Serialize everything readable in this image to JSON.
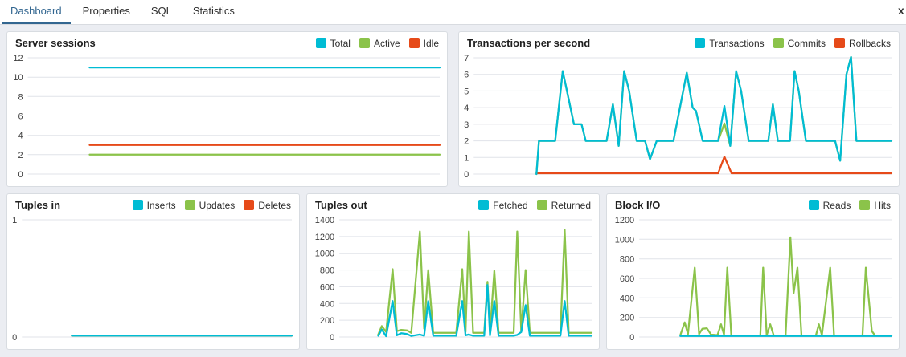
{
  "tabs": {
    "items": [
      {
        "label": "Dashboard",
        "active": true
      },
      {
        "label": "Properties",
        "active": false
      },
      {
        "label": "SQL",
        "active": false
      },
      {
        "label": "Statistics",
        "active": false
      }
    ],
    "close_label": "x"
  },
  "colors": {
    "accent_tab": "#326690",
    "series_cyan": "#00BCD4",
    "series_green": "#8BC34A",
    "series_red": "#E64A19",
    "grid": "#e0e3e9",
    "panel_bg": "#ffffff",
    "page_bg": "#ebedf2"
  },
  "chart_data": [
    {
      "type": "line",
      "title": "Server sessions",
      "ylabel": "",
      "xlabel": "",
      "ylim": [
        0,
        12
      ],
      "yticks": [
        0,
        2,
        4,
        6,
        8,
        10,
        12
      ],
      "grid": true,
      "legend_position": "top-right",
      "series": [
        {
          "name": "Total",
          "color": "#00BCD4",
          "points": [
            [
              0.15,
              11
            ],
            [
              1,
              11
            ]
          ]
        },
        {
          "name": "Active",
          "color": "#8BC34A",
          "points": [
            [
              0.15,
              2
            ],
            [
              1,
              2
            ]
          ]
        },
        {
          "name": "Idle",
          "color": "#E64A19",
          "points": [
            [
              0.15,
              3
            ],
            [
              1,
              3
            ]
          ]
        }
      ]
    },
    {
      "type": "line",
      "title": "Transactions per second",
      "ylabel": "",
      "xlabel": "",
      "ylim": [
        0,
        7
      ],
      "yticks": [
        0,
        1,
        2,
        3,
        4,
        5,
        6,
        7
      ],
      "grid": true,
      "legend_position": "top-right",
      "series": [
        {
          "name": "Transactions",
          "color": "#00BCD4",
          "points": [
            [
              0.15,
              0
            ],
            [
              0.156,
              2
            ],
            [
              0.195,
              2
            ],
            [
              0.213,
              6.2
            ],
            [
              0.24,
              3
            ],
            [
              0.258,
              3
            ],
            [
              0.268,
              2
            ],
            [
              0.318,
              2
            ],
            [
              0.333,
              4.2
            ],
            [
              0.347,
              1.7
            ],
            [
              0.36,
              6.2
            ],
            [
              0.372,
              5
            ],
            [
              0.39,
              2
            ],
            [
              0.41,
              2
            ],
            [
              0.422,
              0.9
            ],
            [
              0.438,
              2
            ],
            [
              0.478,
              2
            ],
            [
              0.51,
              6.1
            ],
            [
              0.524,
              4
            ],
            [
              0.532,
              3.8
            ],
            [
              0.548,
              2
            ],
            [
              0.585,
              2
            ],
            [
              0.6,
              4.1
            ],
            [
              0.614,
              1.7
            ],
            [
              0.628,
              6.2
            ],
            [
              0.64,
              5
            ],
            [
              0.658,
              2
            ],
            [
              0.705,
              2
            ],
            [
              0.716,
              4.2
            ],
            [
              0.728,
              2
            ],
            [
              0.757,
              2
            ],
            [
              0.768,
              6.2
            ],
            [
              0.778,
              5
            ],
            [
              0.795,
              2
            ],
            [
              0.865,
              2
            ],
            [
              0.877,
              0.8
            ],
            [
              0.892,
              6
            ],
            [
              0.903,
              7.05
            ],
            [
              0.916,
              2
            ],
            [
              1,
              2
            ]
          ]
        },
        {
          "name": "Commits",
          "color": "#8BC34A",
          "points": [
            [
              0.15,
              0
            ],
            [
              0.156,
              2
            ],
            [
              0.195,
              2
            ],
            [
              0.213,
              6.2
            ],
            [
              0.24,
              3
            ],
            [
              0.258,
              3
            ],
            [
              0.268,
              2
            ],
            [
              0.318,
              2
            ],
            [
              0.333,
              4.2
            ],
            [
              0.347,
              1.7
            ],
            [
              0.36,
              6.2
            ],
            [
              0.372,
              5
            ],
            [
              0.39,
              2
            ],
            [
              0.41,
              2
            ],
            [
              0.422,
              0.9
            ],
            [
              0.438,
              2
            ],
            [
              0.478,
              2
            ],
            [
              0.51,
              6.1
            ],
            [
              0.524,
              4
            ],
            [
              0.532,
              3.8
            ],
            [
              0.548,
              2
            ],
            [
              0.585,
              2
            ],
            [
              0.6,
              3.05
            ],
            [
              0.614,
              1.7
            ],
            [
              0.628,
              6.2
            ],
            [
              0.64,
              5
            ],
            [
              0.658,
              2
            ],
            [
              0.705,
              2
            ],
            [
              0.716,
              4.2
            ],
            [
              0.728,
              2
            ],
            [
              0.757,
              2
            ],
            [
              0.768,
              6.2
            ],
            [
              0.778,
              5
            ],
            [
              0.795,
              2
            ],
            [
              0.865,
              2
            ],
            [
              0.877,
              0.8
            ],
            [
              0.892,
              6
            ],
            [
              0.903,
              7.05
            ],
            [
              0.916,
              2
            ],
            [
              1,
              2
            ]
          ]
        },
        {
          "name": "Rollbacks",
          "color": "#E64A19",
          "points": [
            [
              0.15,
              0.05
            ],
            [
              0.585,
              0.05
            ],
            [
              0.6,
              1.05
            ],
            [
              0.617,
              0.05
            ],
            [
              1,
              0.05
            ]
          ]
        }
      ]
    },
    {
      "type": "line",
      "title": "Tuples in",
      "ylabel": "",
      "xlabel": "",
      "ylim": [
        0,
        1
      ],
      "yticks": [
        0,
        1
      ],
      "grid": true,
      "legend_position": "top-right",
      "series": [
        {
          "name": "Inserts",
          "color": "#00BCD4",
          "points": [
            [
              0.185,
              0.012
            ],
            [
              1,
              0.012
            ]
          ]
        },
        {
          "name": "Updates",
          "color": "#8BC34A",
          "points": [
            [
              0.185,
              0.012
            ],
            [
              1,
              0.012
            ]
          ]
        },
        {
          "name": "Deletes",
          "color": "#E64A19",
          "points": [
            [
              0.185,
              0.012
            ],
            [
              1,
              0.012
            ]
          ]
        }
      ]
    },
    {
      "type": "line",
      "title": "Tuples out",
      "ylabel": "",
      "xlabel": "",
      "ylim": [
        0,
        1400
      ],
      "yticks": [
        0,
        200,
        400,
        600,
        800,
        1000,
        1200,
        1400
      ],
      "grid": true,
      "legend_position": "top-right",
      "series": [
        {
          "name": "Fetched",
          "color": "#00BCD4",
          "points": [
            [
              0.154,
              15
            ],
            [
              0.168,
              90
            ],
            [
              0.185,
              10
            ],
            [
              0.211,
              430
            ],
            [
              0.228,
              20
            ],
            [
              0.245,
              45
            ],
            [
              0.268,
              35
            ],
            [
              0.285,
              12
            ],
            [
              0.319,
              30
            ],
            [
              0.336,
              15
            ],
            [
              0.352,
              430
            ],
            [
              0.372,
              15
            ],
            [
              0.463,
              15
            ],
            [
              0.487,
              430
            ],
            [
              0.5,
              20
            ],
            [
              0.513,
              30
            ],
            [
              0.53,
              15
            ],
            [
              0.574,
              15
            ],
            [
              0.587,
              620
            ],
            [
              0.597,
              20
            ],
            [
              0.614,
              430
            ],
            [
              0.631,
              15
            ],
            [
              0.691,
              15
            ],
            [
              0.705,
              25
            ],
            [
              0.721,
              60
            ],
            [
              0.738,
              380
            ],
            [
              0.755,
              15
            ],
            [
              0.876,
              15
            ],
            [
              0.893,
              430
            ],
            [
              0.909,
              15
            ],
            [
              1,
              15
            ]
          ]
        },
        {
          "name": "Returned",
          "color": "#8BC34A",
          "points": [
            [
              0.154,
              30
            ],
            [
              0.168,
              130
            ],
            [
              0.185,
              60
            ],
            [
              0.211,
              810
            ],
            [
              0.228,
              70
            ],
            [
              0.245,
              85
            ],
            [
              0.268,
              80
            ],
            [
              0.285,
              50
            ],
            [
              0.319,
              1260
            ],
            [
              0.336,
              100
            ],
            [
              0.352,
              800
            ],
            [
              0.372,
              50
            ],
            [
              0.463,
              50
            ],
            [
              0.487,
              810
            ],
            [
              0.5,
              60
            ],
            [
              0.513,
              1260
            ],
            [
              0.53,
              50
            ],
            [
              0.574,
              50
            ],
            [
              0.587,
              660
            ],
            [
              0.597,
              60
            ],
            [
              0.614,
              790
            ],
            [
              0.631,
              50
            ],
            [
              0.691,
              50
            ],
            [
              0.705,
              1260
            ],
            [
              0.721,
              60
            ],
            [
              0.738,
              800
            ],
            [
              0.755,
              50
            ],
            [
              0.876,
              50
            ],
            [
              0.893,
              1280
            ],
            [
              0.909,
              50
            ],
            [
              1,
              50
            ]
          ]
        }
      ]
    },
    {
      "type": "line",
      "title": "Block I/O",
      "ylabel": "",
      "xlabel": "",
      "ylim": [
        0,
        1200
      ],
      "yticks": [
        0,
        200,
        400,
        600,
        800,
        1000,
        1200
      ],
      "grid": true,
      "legend_position": "top-right",
      "series": [
        {
          "name": "Reads",
          "color": "#00BCD4",
          "points": [
            [
              0.163,
              10
            ],
            [
              1,
              10
            ]
          ]
        },
        {
          "name": "Hits",
          "color": "#8BC34A",
          "points": [
            [
              0.163,
              20
            ],
            [
              0.18,
              150
            ],
            [
              0.193,
              30
            ],
            [
              0.22,
              710
            ],
            [
              0.237,
              30
            ],
            [
              0.25,
              85
            ],
            [
              0.268,
              90
            ],
            [
              0.285,
              25
            ],
            [
              0.31,
              20
            ],
            [
              0.324,
              130
            ],
            [
              0.336,
              25
            ],
            [
              0.349,
              710
            ],
            [
              0.365,
              15
            ],
            [
              0.48,
              15
            ],
            [
              0.491,
              710
            ],
            [
              0.505,
              20
            ],
            [
              0.519,
              130
            ],
            [
              0.533,
              15
            ],
            [
              0.58,
              15
            ],
            [
              0.599,
              1020
            ],
            [
              0.612,
              450
            ],
            [
              0.627,
              710
            ],
            [
              0.643,
              15
            ],
            [
              0.7,
              15
            ],
            [
              0.712,
              130
            ],
            [
              0.724,
              20
            ],
            [
              0.757,
              710
            ],
            [
              0.772,
              15
            ],
            [
              0.885,
              15
            ],
            [
              0.898,
              710
            ],
            [
              0.922,
              60
            ],
            [
              0.935,
              15
            ],
            [
              1,
              15
            ]
          ]
        }
      ]
    }
  ]
}
